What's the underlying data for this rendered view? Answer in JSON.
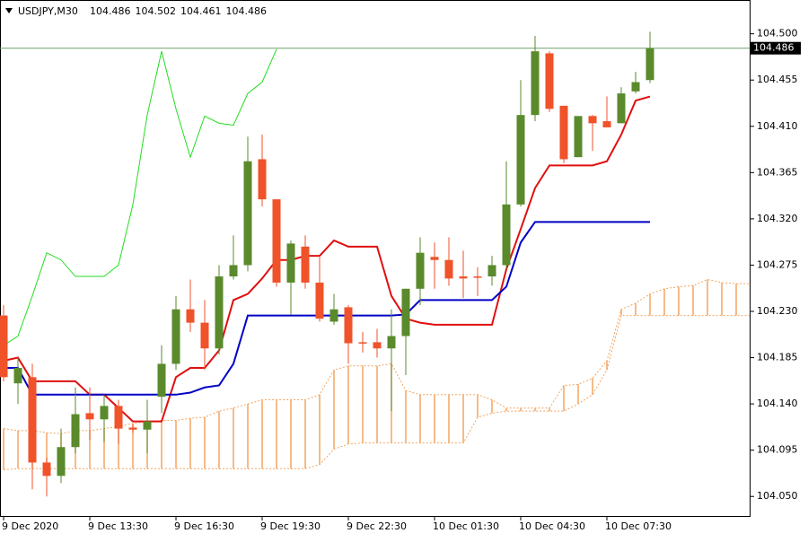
{
  "chart_data": {
    "type": "candlestick",
    "title": "USDJPY,M30",
    "quote": [
      104.486,
      104.502,
      104.461,
      104.486
    ],
    "current_price": 104.486,
    "bull_color": "#5a8a2c",
    "bear_color": "#f0522a",
    "ylim": [
      104.031,
      104.532
    ],
    "yticks": [
      {
        "value": 104.05,
        "label": "104.050"
      },
      104.095,
      {
        "value": 104.14,
        "label": "104.140"
      },
      104.185,
      {
        "value": 104.23,
        "label": "104.230"
      },
      104.275,
      {
        "value": 104.32,
        "label": "104.320"
      },
      104.365,
      {
        "value": 104.41,
        "label": "104.410"
      },
      104.455,
      {
        "value": 104.5,
        "label": "104.500"
      }
    ],
    "categories": [
      "9 Dec 2020",
      null,
      null,
      null,
      null,
      null,
      "9 Dec 13:30",
      null,
      null,
      null,
      null,
      null,
      "9 Dec 16:30",
      null,
      null,
      null,
      null,
      null,
      "9 Dec 19:30",
      null,
      null,
      null,
      null,
      null,
      "9 Dec 22:30",
      null,
      null,
      null,
      null,
      null,
      "10 Dec 01:30",
      null,
      null,
      null,
      null,
      null,
      "10 Dec 04:30",
      null,
      null,
      null,
      null,
      null,
      "10 Dec 07:30",
      null,
      null,
      null,
      null,
      null,
      null,
      null,
      null,
      null,
      null
    ],
    "open": [
      104.226,
      104.16,
      104.166,
      104.083,
      104.07,
      104.098,
      104.131,
      104.125,
      104.138,
      104.117,
      104.115,
      104.147,
      104.179,
      104.232,
      104.219,
      104.194,
      104.264,
      104.275,
      104.378,
      104.339,
      104.258,
      104.293,
      104.258,
      104.22,
      104.234,
      104.2,
      104.2,
      104.194,
      104.206,
      104.252,
      104.283,
      104.28,
      104.264,
      104.264,
      104.264,
      104.275,
      104.334,
      104.421,
      104.481,
      104.43,
      104.38,
      104.42,
      104.415,
      104.413,
      104.444,
      104.455,
      null,
      null,
      null,
      null,
      null,
      null,
      null
    ],
    "high": [
      104.236,
      104.185,
      104.179,
      104.088,
      104.116,
      104.156,
      104.156,
      104.149,
      104.144,
      104.12,
      104.144,
      104.197,
      104.245,
      104.261,
      104.241,
      104.275,
      104.304,
      104.4,
      104.402,
      104.339,
      104.299,
      104.304,
      104.284,
      104.247,
      104.236,
      104.21,
      104.213,
      104.232,
      104.252,
      104.302,
      104.297,
      104.302,
      104.289,
      104.273,
      104.284,
      104.376,
      104.455,
      104.498,
      104.483,
      104.43,
      104.42,
      104.421,
      104.439,
      104.448,
      104.463,
      104.502,
      null,
      null,
      null,
      null,
      null,
      null,
      null
    ],
    "low": [
      104.162,
      104.14,
      104.057,
      104.05,
      104.063,
      104.092,
      104.105,
      104.103,
      104.101,
      104.112,
      104.092,
      104.131,
      104.173,
      104.21,
      104.173,
      104.188,
      104.261,
      104.269,
      104.332,
      104.254,
      104.227,
      104.252,
      104.22,
      104.217,
      104.179,
      104.19,
      104.185,
      104.133,
      104.168,
      104.236,
      104.252,
      104.255,
      104.243,
      104.245,
      104.255,
      104.271,
      104.332,
      104.415,
      104.424,
      104.374,
      104.38,
      104.386,
      104.409,
      104.413,
      104.442,
      104.452,
      null,
      null,
      null,
      null,
      null,
      null,
      null
    ],
    "close": [
      104.166,
      104.175,
      104.083,
      104.07,
      104.098,
      104.13,
      104.125,
      104.138,
      104.116,
      104.115,
      104.123,
      104.179,
      104.232,
      104.219,
      104.194,
      104.264,
      104.275,
      104.376,
      104.339,
      104.258,
      104.296,
      104.258,
      104.223,
      104.232,
      104.199,
      104.199,
      104.194,
      104.206,
      104.252,
      104.287,
      104.28,
      104.262,
      104.262,
      104.263,
      104.275,
      104.334,
      104.421,
      104.483,
      104.427,
      104.378,
      104.42,
      104.413,
      104.409,
      104.442,
      104.453,
      104.486,
      null,
      null,
      null,
      null,
      null,
      null,
      null
    ],
    "series": [
      {
        "color": "#e01010",
        "values": [
          104.182,
          104.185,
          104.162,
          104.162,
          104.162,
          104.162,
          104.149,
          104.149,
          104.136,
          104.123,
          104.123,
          104.123,
          104.166,
          104.175,
          104.175,
          104.192,
          104.241,
          104.247,
          104.262,
          104.28,
          104.28,
          104.284,
          104.284,
          104.299,
          104.293,
          104.293,
          104.293,
          104.245,
          104.223,
          104.219,
          104.217,
          104.217,
          104.217,
          104.217,
          104.217,
          104.271,
          104.31,
          104.35,
          104.372,
          104.372,
          104.372,
          104.372,
          104.376,
          104.402,
          104.435,
          104.439,
          null,
          null,
          null,
          null,
          null,
          null,
          null
        ]
      },
      {
        "color": "#0000c8",
        "values": [
          104.175,
          104.175,
          104.149,
          104.149,
          104.149,
          104.149,
          104.149,
          104.149,
          104.149,
          104.149,
          104.149,
          104.149,
          104.149,
          104.151,
          104.156,
          104.158,
          104.179,
          104.226,
          104.226,
          104.226,
          104.226,
          104.226,
          104.226,
          104.226,
          104.226,
          104.226,
          104.226,
          104.226,
          104.227,
          104.241,
          104.241,
          104.241,
          104.241,
          104.241,
          104.241,
          104.254,
          104.297,
          104.317,
          104.317,
          104.317,
          104.317,
          104.317,
          104.317,
          104.317,
          104.317,
          104.317,
          null,
          null,
          null,
          null,
          null,
          null,
          null
        ]
      },
      {
        "color": "#22dd22",
        "values": [
          104.197,
          104.206,
          104.245,
          104.287,
          104.28,
          104.264,
          104.264,
          104.264,
          104.275,
          104.334,
          104.421,
          104.483,
          104.427,
          104.38,
          104.42,
          104.413,
          104.411,
          104.442,
          104.453,
          104.485,
          null,
          null,
          null,
          null,
          null,
          null,
          null,
          null,
          null,
          null,
          null,
          null,
          null,
          null,
          null,
          null,
          null,
          null,
          null,
          null,
          null,
          null,
          null,
          null,
          null,
          null,
          null,
          null,
          null,
          null,
          null,
          null,
          null
        ]
      }
    ],
    "cloud": {
      "color": "#f4a460",
      "span_a": [
        104.116,
        104.114,
        104.114,
        104.112,
        104.111,
        104.114,
        104.114,
        104.116,
        104.118,
        104.121,
        104.123,
        104.124,
        104.124,
        104.126,
        104.127,
        104.133,
        104.136,
        104.14,
        104.144,
        104.144,
        104.144,
        104.144,
        104.149,
        104.173,
        104.177,
        104.177,
        104.177,
        104.179,
        104.153,
        104.149,
        104.149,
        104.149,
        104.149,
        104.149,
        104.144,
        104.136,
        104.136,
        104.136,
        104.136,
        104.158,
        104.159,
        104.165,
        104.182,
        104.232,
        104.238,
        104.247,
        104.252,
        104.254,
        104.255,
        104.261,
        104.258,
        104.257,
        104.257
      ],
      "span_b": [
        104.076,
        104.077,
        104.077,
        104.077,
        104.077,
        104.077,
        104.077,
        104.077,
        104.077,
        104.077,
        104.077,
        104.077,
        104.077,
        104.077,
        104.077,
        104.077,
        104.077,
        104.077,
        104.077,
        104.077,
        104.077,
        104.077,
        104.081,
        104.096,
        104.101,
        104.102,
        104.102,
        104.102,
        104.102,
        104.102,
        104.102,
        104.102,
        104.102,
        104.127,
        104.131,
        104.133,
        104.133,
        104.133,
        104.133,
        104.133,
        104.14,
        104.149,
        104.173,
        104.226,
        104.226,
        104.226,
        104.226,
        104.226,
        104.226,
        104.226,
        104.226,
        104.226,
        104.226
      ]
    },
    "price_line_color": "#6f9f6f"
  }
}
